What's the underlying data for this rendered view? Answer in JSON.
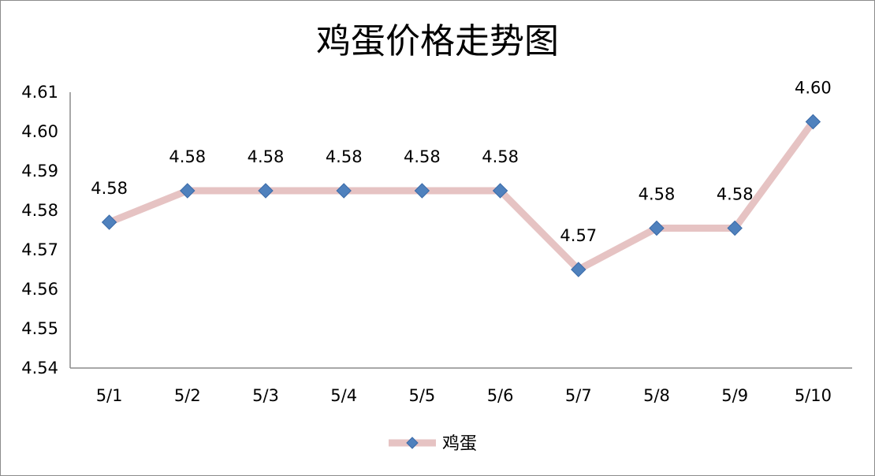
{
  "chart_data": {
    "type": "line",
    "title": "鸡蛋价格走势图",
    "xlabel": "",
    "ylabel": "",
    "categories": [
      "5/1",
      "5/2",
      "5/3",
      "5/4",
      "5/5",
      "5/6",
      "5/7",
      "5/8",
      "5/9",
      "5/10"
    ],
    "series": [
      {
        "name": "鸡蛋",
        "values": [
          4.577,
          4.585,
          4.585,
          4.585,
          4.585,
          4.585,
          4.565,
          4.5755,
          4.5755,
          4.6025
        ],
        "labels": [
          "4.58",
          "4.58",
          "4.58",
          "4.58",
          "4.58",
          "4.58",
          "4.57",
          "4.58",
          "4.58",
          "4.60"
        ],
        "line_color": "#e6c3c3",
        "marker_color": "#4f81bd"
      }
    ],
    "ylim": [
      4.54,
      4.61
    ],
    "yticks": [
      "4.54",
      "4.55",
      "4.56",
      "4.57",
      "4.58",
      "4.59",
      "4.60",
      "4.61"
    ],
    "grid": false,
    "legend_position": "bottom",
    "marker": "diamond"
  }
}
